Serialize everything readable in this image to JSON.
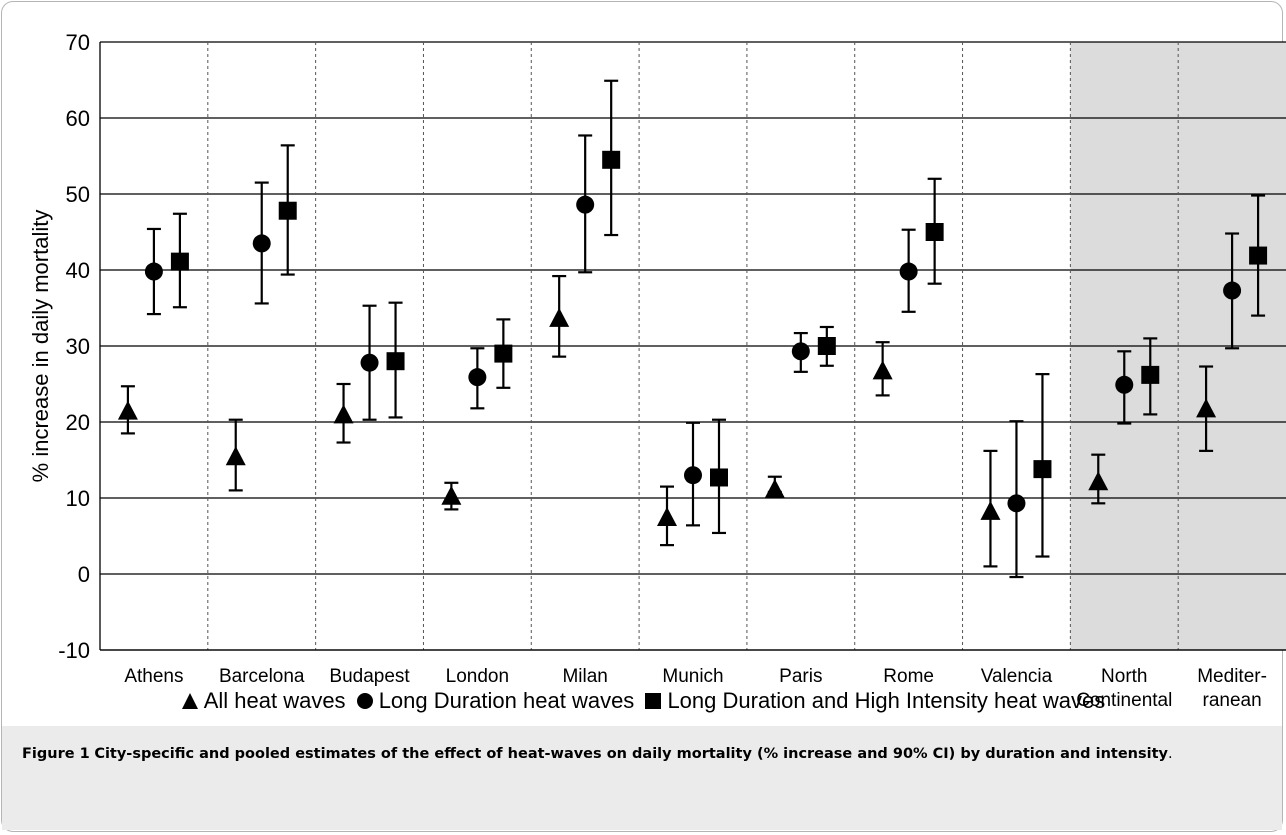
{
  "chart_data": {
    "type": "scatter",
    "ylabel": "% increase in daily mortality",
    "ylim": [
      -10,
      70
    ],
    "yticks": [
      -10,
      0,
      10,
      20,
      30,
      40,
      50,
      60,
      70
    ],
    "grid": true,
    "legend_placement": "bottom",
    "categories": [
      {
        "label": "Athens",
        "label2": ""
      },
      {
        "label": "Barcelona",
        "label2": ""
      },
      {
        "label": "Budapest",
        "label2": ""
      },
      {
        "label": "London",
        "label2": ""
      },
      {
        "label": "Milan",
        "label2": ""
      },
      {
        "label": "Munich",
        "label2": ""
      },
      {
        "label": "Paris",
        "label2": ""
      },
      {
        "label": "Rome",
        "label2": ""
      },
      {
        "label": "Valencia",
        "label2": ""
      },
      {
        "label": "North",
        "label2": "Continental"
      },
      {
        "label": "Mediter-",
        "label2": "ranean"
      }
    ],
    "shaded_categories": [
      9,
      10
    ],
    "series": [
      {
        "name": "All heat waves",
        "marker": "triangle",
        "values": [
          21.5,
          15.5,
          21,
          10.3,
          33.7,
          7.5,
          11.2,
          26.8,
          8.3,
          12.2,
          21.8
        ],
        "ci_low": [
          18.5,
          11,
          17.3,
          8.5,
          28.6,
          3.8,
          10.8,
          23.5,
          1,
          9.3,
          16.2
        ],
        "ci_high": [
          24.7,
          20.3,
          25,
          12,
          39.2,
          11.5,
          12.8,
          30.5,
          16.2,
          15.7,
          27.3
        ]
      },
      {
        "name": "Long Duration heat waves",
        "marker": "circle",
        "values": [
          39.8,
          43.5,
          27.8,
          25.9,
          48.6,
          13,
          29.3,
          39.8,
          9.3,
          24.9,
          37.3
        ],
        "ci_low": [
          34.2,
          35.6,
          20.3,
          21.8,
          39.7,
          6.4,
          26.6,
          34.5,
          -0.4,
          19.8,
          29.7
        ],
        "ci_high": [
          45.4,
          51.5,
          35.3,
          29.7,
          57.7,
          19.9,
          31.7,
          45.3,
          20.1,
          29.3,
          44.8
        ]
      },
      {
        "name": "Long Duration and High Intensity heat waves",
        "marker": "square",
        "values": [
          41.1,
          47.8,
          28,
          29,
          54.5,
          12.7,
          30,
          45,
          13.8,
          26.2,
          41.9
        ],
        "ci_low": [
          35.1,
          39.4,
          20.6,
          24.5,
          44.6,
          5.4,
          27.4,
          38.2,
          2.3,
          21,
          34
        ],
        "ci_high": [
          47.4,
          56.4,
          35.7,
          33.5,
          64.9,
          20.3,
          32.5,
          52,
          26.3,
          31,
          49.8
        ]
      }
    ]
  },
  "caption": {
    "label": "Figure 1",
    "text": "City-specific and pooled estimates of the effect of heat-waves on daily mortality (% increase and 90% CI) by duration and intensity",
    "end": "."
  },
  "colors": {
    "marker": "#000000",
    "grid": "#000000",
    "shade": "#dcdcdc",
    "caption_band": "#ebebeb"
  }
}
